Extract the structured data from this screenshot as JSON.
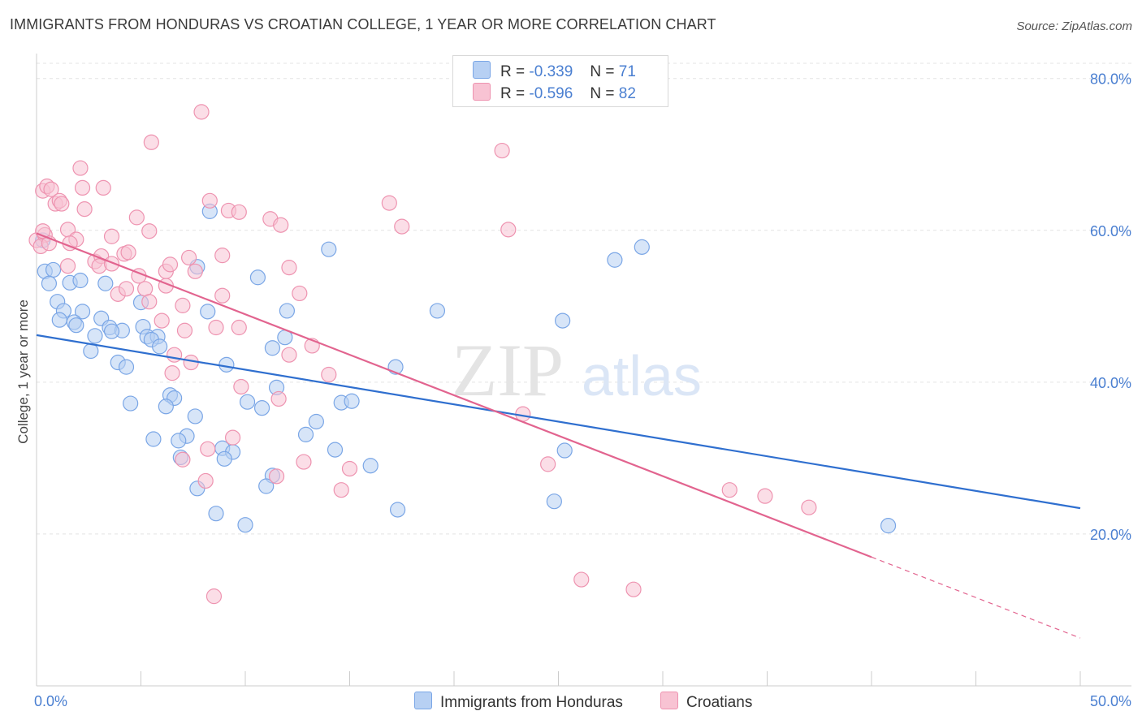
{
  "title": "IMMIGRANTS FROM HONDURAS VS CROATIAN COLLEGE, 1 YEAR OR MORE CORRELATION CHART",
  "source": "Source: ZipAtlas.com",
  "watermark": {
    "zip": "ZIP",
    "atlas": "atlas"
  },
  "legend": {
    "r_label": "R =",
    "n_label": "N =",
    "rows": [
      {
        "r": "-0.339",
        "n": "71",
        "swatch_fill": "#b7d0f3",
        "swatch_stroke": "#7aa6e6"
      },
      {
        "r": "-0.596",
        "n": "82",
        "swatch_fill": "#f8c3d3",
        "swatch_stroke": "#ee93b0"
      }
    ]
  },
  "bottom_legend": [
    {
      "label": "Immigrants from Honduras",
      "swatch_fill": "#b7d0f3",
      "swatch_stroke": "#7aa6e6"
    },
    {
      "label": "Croatians",
      "swatch_fill": "#f8c3d3",
      "swatch_stroke": "#ee93b0"
    }
  ],
  "chart_data": {
    "type": "scatter",
    "title": "IMMIGRANTS FROM HONDURAS VS CROATIAN COLLEGE, 1 YEAR OR MORE CORRELATION CHART",
    "xlabel": "",
    "ylabel": "College, 1 year or more",
    "xlim": [
      0,
      50
    ],
    "ylim": [
      0,
      82
    ],
    "x_tick_labels": [
      "0.0%",
      "50.0%"
    ],
    "y_ticks": [
      20,
      40,
      60,
      80
    ],
    "y_tick_labels": [
      "20.0%",
      "40.0%",
      "60.0%",
      "80.0%"
    ],
    "grid": true,
    "legend_placement": "top-center",
    "series": [
      {
        "name": "Immigrants from Honduras",
        "color": "#7aa6e6",
        "fill": "#b7d0f3",
        "line_color": "#2f6fcf",
        "trend": {
          "x": [
            0,
            50
          ],
          "y": [
            46.2,
            23.4
          ],
          "dashed_from": null
        },
        "points": [
          [
            0.4,
            54.6
          ],
          [
            0.8,
            54.8
          ],
          [
            0.6,
            53
          ],
          [
            1.6,
            53.1
          ],
          [
            1,
            50.6
          ],
          [
            2.1,
            53.4
          ],
          [
            3.3,
            53
          ],
          [
            1.3,
            49.4
          ],
          [
            2.2,
            49.3
          ],
          [
            1.1,
            48.2
          ],
          [
            1.8,
            47.9
          ],
          [
            1.9,
            47.5
          ],
          [
            3.1,
            48.4
          ],
          [
            3.5,
            47.2
          ],
          [
            4.1,
            46.8
          ],
          [
            3.6,
            46.7
          ],
          [
            2.8,
            46.1
          ],
          [
            5.0,
            50.5
          ],
          [
            5.1,
            47.3
          ],
          [
            5.3,
            46.0
          ],
          [
            5.8,
            46.0
          ],
          [
            5.5,
            45.6
          ],
          [
            5.9,
            44.7
          ],
          [
            2.6,
            44.1
          ],
          [
            3.9,
            42.6
          ],
          [
            4.3,
            42
          ],
          [
            8.2,
            49.3
          ],
          [
            10.6,
            53.8
          ],
          [
            12.0,
            49.4
          ],
          [
            8.3,
            62.5
          ],
          [
            7.7,
            55.2
          ],
          [
            14.0,
            57.5
          ],
          [
            11.9,
            45.9
          ],
          [
            11.3,
            44.5
          ],
          [
            9.1,
            42.3
          ],
          [
            11.5,
            39.3
          ],
          [
            17.2,
            42
          ],
          [
            19.2,
            49.4
          ],
          [
            6.4,
            38.3
          ],
          [
            6.6,
            37.9
          ],
          [
            4.5,
            37.2
          ],
          [
            6.2,
            36.8
          ],
          [
            10.1,
            37.4
          ],
          [
            10.8,
            36.6
          ],
          [
            7.6,
            35.5
          ],
          [
            13.4,
            34.8
          ],
          [
            14.6,
            37.3
          ],
          [
            15.1,
            37.5
          ],
          [
            12.9,
            33.1
          ],
          [
            5.6,
            32.5
          ],
          [
            7.2,
            32.9
          ],
          [
            6.8,
            32.3
          ],
          [
            8.9,
            31.3
          ],
          [
            9.4,
            30.8
          ],
          [
            6.9,
            30.1
          ],
          [
            9.0,
            29.9
          ],
          [
            14.3,
            31.1
          ],
          [
            16.0,
            29.0
          ],
          [
            11.3,
            27.7
          ],
          [
            11.0,
            26.3
          ],
          [
            7.7,
            26.0
          ],
          [
            8.6,
            22.7
          ],
          [
            10.0,
            21.2
          ],
          [
            17.3,
            23.2
          ],
          [
            25.2,
            48.1
          ],
          [
            27.7,
            56.1
          ],
          [
            29.0,
            57.8
          ],
          [
            24.8,
            24.3
          ],
          [
            25.3,
            31.0
          ],
          [
            40.8,
            21.1
          ],
          [
            0.3,
            58.7
          ]
        ]
      },
      {
        "name": "Croatians",
        "color": "#ee93b0",
        "fill": "#f8c3d3",
        "line_color": "#e2648f",
        "trend": {
          "x": [
            0,
            50
          ],
          "y": [
            59.6,
            6.3
          ],
          "dashed_from": 40.0
        },
        "points": [
          [
            0.3,
            65.2
          ],
          [
            0.5,
            65.8
          ],
          [
            0.7,
            65.4
          ],
          [
            0.9,
            63.5
          ],
          [
            1.1,
            63.9
          ],
          [
            1.2,
            63.5
          ],
          [
            1.5,
            60.1
          ],
          [
            1.9,
            58.8
          ],
          [
            2.1,
            68.2
          ],
          [
            2.2,
            65.6
          ],
          [
            2.3,
            62.8
          ],
          [
            3.2,
            65.6
          ],
          [
            1.6,
            58.3
          ],
          [
            1.5,
            55.3
          ],
          [
            2.8,
            55.9
          ],
          [
            3.1,
            56.6
          ],
          [
            3.0,
            55.3
          ],
          [
            3.6,
            59.2
          ],
          [
            3.6,
            55.6
          ],
          [
            3.9,
            51.6
          ],
          [
            4.2,
            56.9
          ],
          [
            4.4,
            57.1
          ],
          [
            4.8,
            61.7
          ],
          [
            5.4,
            59.9
          ],
          [
            5.5,
            71.6
          ],
          [
            4.9,
            54.0
          ],
          [
            5.2,
            52.3
          ],
          [
            4.3,
            52.3
          ],
          [
            5.4,
            50.6
          ],
          [
            6.2,
            54.6
          ],
          [
            6.4,
            55.5
          ],
          [
            6.2,
            52.7
          ],
          [
            7.0,
            50.1
          ],
          [
            7.3,
            56.4
          ],
          [
            7.6,
            54.6
          ],
          [
            7.9,
            75.6
          ],
          [
            8.3,
            63.9
          ],
          [
            8.9,
            56.7
          ],
          [
            9.2,
            62.6
          ],
          [
            9.7,
            62.4
          ],
          [
            11.2,
            61.5
          ],
          [
            11.7,
            60.7
          ],
          [
            8.9,
            51.4
          ],
          [
            6.0,
            48.1
          ],
          [
            7.1,
            46.8
          ],
          [
            8.6,
            47.2
          ],
          [
            9.7,
            47.2
          ],
          [
            6.6,
            43.6
          ],
          [
            7.4,
            42.6
          ],
          [
            6.5,
            41.2
          ],
          [
            12.1,
            43.6
          ],
          [
            13.2,
            44.8
          ],
          [
            12.6,
            51.7
          ],
          [
            12.1,
            55.1
          ],
          [
            14.0,
            41.0
          ],
          [
            9.8,
            39.4
          ],
          [
            11.6,
            37.8
          ],
          [
            9.4,
            32.7
          ],
          [
            8.2,
            31.2
          ],
          [
            7.0,
            29.8
          ],
          [
            12.8,
            29.5
          ],
          [
            15.0,
            28.6
          ],
          [
            11.5,
            27.6
          ],
          [
            8.1,
            27.0
          ],
          [
            14.6,
            25.8
          ],
          [
            16.9,
            63.6
          ],
          [
            17.5,
            60.5
          ],
          [
            22.3,
            70.5
          ],
          [
            22.6,
            60.1
          ],
          [
            23.3,
            35.8
          ],
          [
            24.5,
            29.2
          ],
          [
            33.2,
            25.8
          ],
          [
            34.9,
            25
          ],
          [
            37.0,
            23.5
          ],
          [
            26.1,
            14
          ],
          [
            28.6,
            12.7
          ],
          [
            8.5,
            11.8
          ],
          [
            0.0,
            58.7
          ],
          [
            0.4,
            59.4
          ],
          [
            0.2,
            57.9
          ],
          [
            0.6,
            58.3
          ],
          [
            0.3,
            59.9
          ]
        ]
      }
    ]
  }
}
